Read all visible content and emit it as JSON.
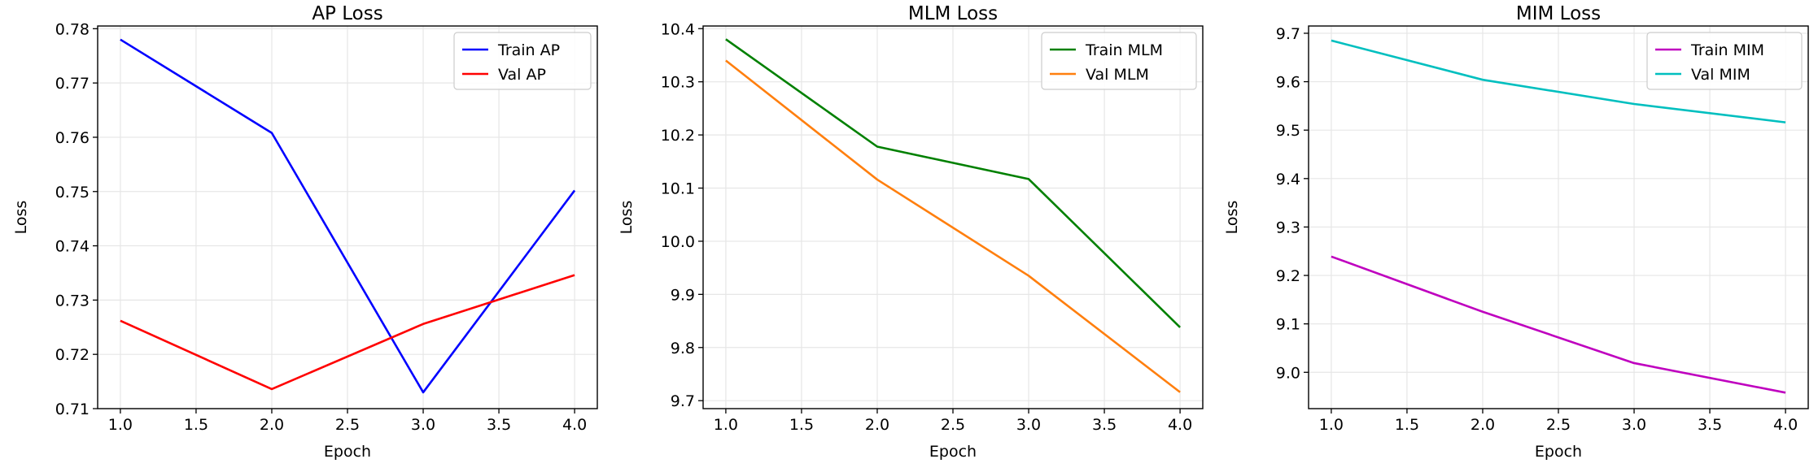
{
  "chart_data": [
    {
      "type": "line",
      "title": "AP Loss",
      "xlabel": "Epoch",
      "ylabel": "Loss",
      "xlim": [
        0.85,
        4.15
      ],
      "ylim": [
        0.71,
        0.7805
      ],
      "xticks": [
        "1.0",
        "1.5",
        "2.0",
        "2.5",
        "3.0",
        "3.5",
        "4.0"
      ],
      "yticks": [
        "0.71",
        "0.72",
        "0.73",
        "0.74",
        "0.75",
        "0.76",
        "0.77",
        "0.78"
      ],
      "grid": true,
      "legend": "top-right",
      "x": [
        1,
        2,
        3,
        4
      ],
      "series": [
        {
          "name": "Train AP",
          "color": "#0000ff",
          "values": [
            0.778,
            0.7608,
            0.713,
            0.7502
          ]
        },
        {
          "name": "Val AP",
          "color": "#ff0000",
          "values": [
            0.7262,
            0.7136,
            0.7256,
            0.7346
          ]
        }
      ]
    },
    {
      "type": "line",
      "title": "MLM Loss",
      "xlabel": "Epoch",
      "ylabel": "Loss",
      "xlim": [
        0.85,
        4.15
      ],
      "ylim": [
        9.685,
        10.405
      ],
      "xticks": [
        "1.0",
        "1.5",
        "2.0",
        "2.5",
        "3.0",
        "3.5",
        "4.0"
      ],
      "yticks": [
        "9.7",
        "9.8",
        "9.9",
        "10.0",
        "10.1",
        "10.2",
        "10.3",
        "10.4"
      ],
      "grid": true,
      "legend": "top-right",
      "x": [
        1,
        2,
        3,
        4
      ],
      "series": [
        {
          "name": "Train MLM",
          "color": "#008000",
          "values": [
            10.38,
            10.178,
            10.117,
            9.838
          ]
        },
        {
          "name": "Val MLM",
          "color": "#ff7f0e",
          "values": [
            10.34,
            10.116,
            9.935,
            9.716
          ]
        }
      ]
    },
    {
      "type": "line",
      "title": "MIM Loss",
      "xlabel": "Epoch",
      "ylabel": "Loss",
      "xlim": [
        0.85,
        4.15
      ],
      "ylim": [
        8.925,
        9.715
      ],
      "xticks": [
        "1.0",
        "1.5",
        "2.0",
        "2.5",
        "3.0",
        "3.5",
        "4.0"
      ],
      "yticks": [
        "9.0",
        "9.1",
        "9.2",
        "9.3",
        "9.4",
        "9.5",
        "9.6",
        "9.7"
      ],
      "grid": true,
      "legend": "top-right",
      "x": [
        1,
        2,
        3,
        4
      ],
      "series": [
        {
          "name": "Train MIM",
          "color": "#bf00bf",
          "values": [
            9.239,
            9.125,
            9.019,
            8.958
          ]
        },
        {
          "name": "Val MIM",
          "color": "#00bfbf",
          "values": [
            9.685,
            9.604,
            9.554,
            9.516
          ]
        }
      ]
    }
  ]
}
